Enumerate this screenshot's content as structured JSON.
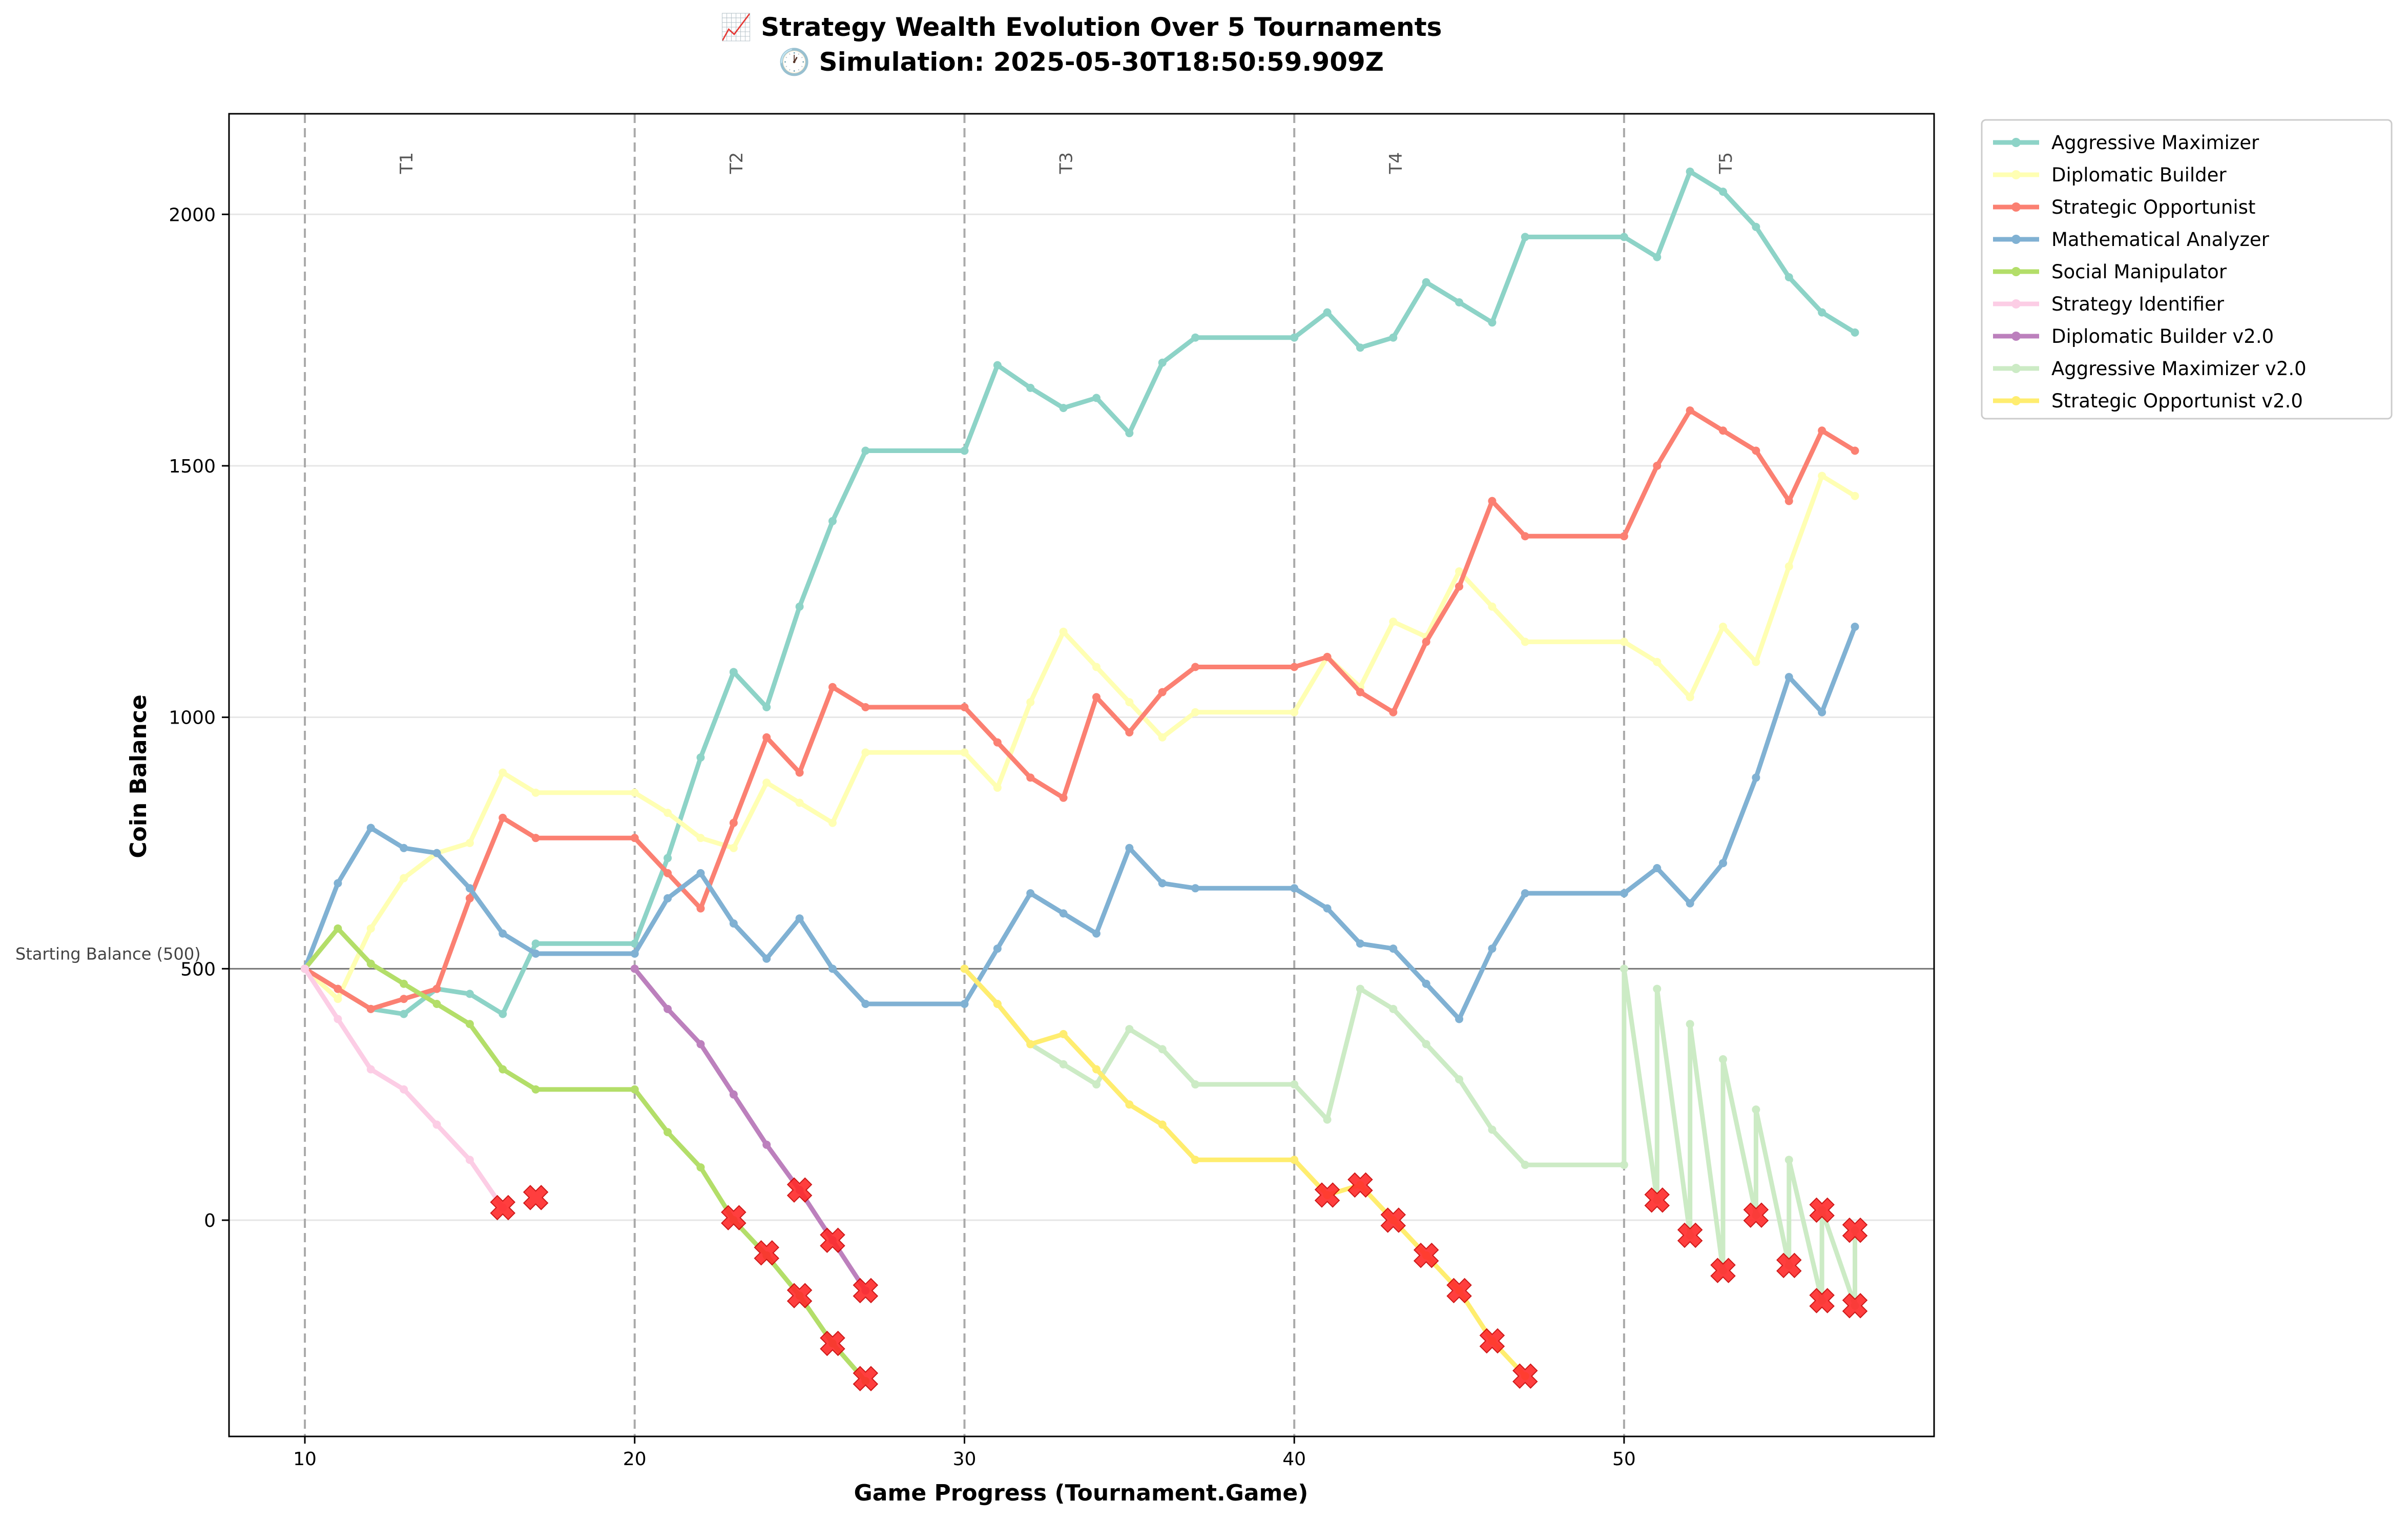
{
  "chart_data": {
    "type": "line",
    "title_line1": "📈 Strategy Wealth Evolution Over 5 Tournaments",
    "title_line2": "🕐 Simulation: 2025-05-30T18:50:59.909Z",
    "xlabel": "Game Progress (Tournament.Game)",
    "ylabel": "Coin Balance",
    "xlim": [
      7.7,
      59.4
    ],
    "ylim": [
      -430,
      2200
    ],
    "xticks": [
      10,
      20,
      30,
      40,
      50
    ],
    "yticks": [
      0,
      500,
      1000,
      1500,
      2000
    ],
    "grid": "horizontal",
    "legend_position": "outside-right",
    "reference_line": {
      "y": 500,
      "label": "Starting Balance (500)"
    },
    "tournament_markers": [
      {
        "x": 10,
        "label": "T1"
      },
      {
        "x": 20,
        "label": "T2"
      },
      {
        "x": 30,
        "label": "T3"
      },
      {
        "x": 40,
        "label": "T4"
      },
      {
        "x": 50,
        "label": "T5"
      }
    ],
    "series": [
      {
        "name": "Aggressive Maximizer",
        "color": "#8dd3c7",
        "points": [
          [
            10,
            500
          ],
          [
            11,
            460
          ],
          [
            12,
            420
          ],
          [
            13,
            410
          ],
          [
            14,
            460
          ],
          [
            15,
            450
          ],
          [
            16,
            410
          ],
          [
            17,
            550
          ],
          [
            20,
            550
          ],
          [
            21,
            720
          ],
          [
            22,
            920
          ],
          [
            23,
            1090
          ],
          [
            24,
            1020
          ],
          [
            25,
            1220
          ],
          [
            26,
            1390
          ],
          [
            27,
            1530
          ],
          [
            30,
            1530
          ],
          [
            31,
            1700
          ],
          [
            32,
            1655
          ],
          [
            33,
            1615
          ],
          [
            34,
            1635
          ],
          [
            35,
            1565
          ],
          [
            36,
            1705
          ],
          [
            37,
            1755
          ],
          [
            40,
            1755
          ],
          [
            41,
            1805
          ],
          [
            42,
            1735
          ],
          [
            43,
            1755
          ],
          [
            44,
            1865
          ],
          [
            45,
            1825
          ],
          [
            46,
            1785
          ],
          [
            47,
            1955
          ],
          [
            50,
            1955
          ],
          [
            51,
            1915
          ],
          [
            52,
            2085
          ],
          [
            53,
            2045
          ],
          [
            54,
            1975
          ],
          [
            55,
            1875
          ],
          [
            56,
            1805
          ],
          [
            57,
            1765
          ]
        ]
      },
      {
        "name": "Diplomatic Builder",
        "color": "#ffffb3",
        "points": [
          [
            10,
            500
          ],
          [
            11,
            440
          ],
          [
            12,
            580
          ],
          [
            13,
            680
          ],
          [
            14,
            730
          ],
          [
            15,
            750
          ],
          [
            16,
            890
          ],
          [
            17,
            850
          ],
          [
            20,
            850
          ],
          [
            21,
            810
          ],
          [
            22,
            760
          ],
          [
            23,
            740
          ],
          [
            24,
            870
          ],
          [
            25,
            830
          ],
          [
            26,
            790
          ],
          [
            27,
            930
          ],
          [
            30,
            930
          ],
          [
            31,
            860
          ],
          [
            32,
            1030
          ],
          [
            33,
            1170
          ],
          [
            34,
            1100
          ],
          [
            35,
            1030
          ],
          [
            36,
            960
          ],
          [
            37,
            1010
          ],
          [
            40,
            1010
          ],
          [
            41,
            1120
          ],
          [
            42,
            1060
          ],
          [
            43,
            1190
          ],
          [
            44,
            1160
          ],
          [
            45,
            1290
          ],
          [
            46,
            1220
          ],
          [
            47,
            1150
          ],
          [
            50,
            1150
          ],
          [
            51,
            1110
          ],
          [
            52,
            1040
          ],
          [
            53,
            1180
          ],
          [
            54,
            1110
          ],
          [
            55,
            1300
          ],
          [
            56,
            1480
          ],
          [
            57,
            1440
          ]
        ]
      },
      {
        "name": "Strategic Opportunist",
        "color": "#fb8072",
        "points": [
          [
            10,
            500
          ],
          [
            11,
            460
          ],
          [
            12,
            420
          ],
          [
            13,
            440
          ],
          [
            14,
            460
          ],
          [
            15,
            640
          ],
          [
            16,
            800
          ],
          [
            17,
            760
          ],
          [
            20,
            760
          ],
          [
            21,
            690
          ],
          [
            22,
            620
          ],
          [
            23,
            790
          ],
          [
            24,
            960
          ],
          [
            25,
            890
          ],
          [
            26,
            1060
          ],
          [
            27,
            1020
          ],
          [
            30,
            1020
          ],
          [
            31,
            950
          ],
          [
            32,
            880
          ],
          [
            33,
            840
          ],
          [
            34,
            1040
          ],
          [
            35,
            970
          ],
          [
            36,
            1050
          ],
          [
            37,
            1100
          ],
          [
            40,
            1100
          ],
          [
            41,
            1120
          ],
          [
            42,
            1050
          ],
          [
            43,
            1010
          ],
          [
            44,
            1150
          ],
          [
            45,
            1260
          ],
          [
            46,
            1430
          ],
          [
            47,
            1360
          ],
          [
            50,
            1360
          ],
          [
            51,
            1500
          ],
          [
            52,
            1610
          ],
          [
            53,
            1570
          ],
          [
            54,
            1530
          ],
          [
            55,
            1430
          ],
          [
            56,
            1570
          ],
          [
            57,
            1530
          ]
        ]
      },
      {
        "name": "Mathematical Analyzer",
        "color": "#80b1d3",
        "points": [
          [
            10,
            500
          ],
          [
            11,
            670
          ],
          [
            12,
            780
          ],
          [
            13,
            740
          ],
          [
            14,
            730
          ],
          [
            15,
            660
          ],
          [
            16,
            570
          ],
          [
            17,
            530
          ],
          [
            20,
            530
          ],
          [
            21,
            640
          ],
          [
            22,
            690
          ],
          [
            23,
            590
          ],
          [
            24,
            520
          ],
          [
            25,
            600
          ],
          [
            26,
            500
          ],
          [
            27,
            430
          ],
          [
            30,
            430
          ],
          [
            31,
            540
          ],
          [
            32,
            650
          ],
          [
            33,
            610
          ],
          [
            34,
            570
          ],
          [
            35,
            740
          ],
          [
            36,
            670
          ],
          [
            37,
            660
          ],
          [
            40,
            660
          ],
          [
            41,
            620
          ],
          [
            42,
            550
          ],
          [
            43,
            540
          ],
          [
            44,
            470
          ],
          [
            45,
            400
          ],
          [
            46,
            540
          ],
          [
            47,
            650
          ],
          [
            50,
            650
          ],
          [
            51,
            700
          ],
          [
            52,
            630
          ],
          [
            53,
            710
          ],
          [
            54,
            880
          ],
          [
            55,
            1080
          ],
          [
            56,
            1010
          ],
          [
            57,
            1180
          ]
        ]
      },
      {
        "name": "Social Manipulator",
        "color": "#b3de69",
        "points": [
          [
            10,
            500
          ],
          [
            11,
            580
          ],
          [
            12,
            510
          ],
          [
            13,
            470
          ],
          [
            14,
            430
          ],
          [
            15,
            390
          ],
          [
            16,
            300
          ],
          [
            17,
            260
          ],
          [
            20,
            260
          ],
          [
            21,
            175
          ],
          [
            22,
            105
          ],
          [
            23,
            0
          ],
          [
            24,
            -70
          ],
          [
            25,
            -150
          ],
          [
            26,
            -245
          ],
          [
            27,
            -320
          ]
        ]
      },
      {
        "name": "Strategy Identifier",
        "color": "#fccde5",
        "points": [
          [
            10,
            500
          ],
          [
            11,
            400
          ],
          [
            12,
            300
          ],
          [
            13,
            260
          ],
          [
            14,
            190
          ],
          [
            15,
            120
          ],
          [
            16,
            25
          ]
        ]
      },
      {
        "name": "Diplomatic Builder v2.0",
        "color": "#bc80bd",
        "points": [
          [
            20,
            500
          ],
          [
            21,
            420
          ],
          [
            22,
            350
          ],
          [
            23,
            250
          ],
          [
            24,
            150
          ],
          [
            25,
            60
          ],
          [
            26,
            -40
          ],
          [
            27,
            -140
          ]
        ]
      },
      {
        "name": "Aggressive Maximizer v2.0",
        "color": "#ccebc5",
        "points": [
          [
            30,
            500
          ],
          [
            31,
            430
          ],
          [
            32,
            350
          ],
          [
            33,
            310
          ],
          [
            34,
            270
          ],
          [
            35,
            380
          ],
          [
            36,
            340
          ],
          [
            37,
            270
          ],
          [
            40,
            270
          ],
          [
            41,
            200
          ],
          [
            42,
            460
          ],
          [
            43,
            420
          ],
          [
            44,
            350
          ],
          [
            45,
            280
          ],
          [
            46,
            180
          ],
          [
            47,
            110
          ],
          [
            50,
            110
          ],
          [
            50,
            500
          ],
          [
            51,
            40
          ],
          [
            51,
            460
          ],
          [
            52,
            -30
          ],
          [
            52,
            390
          ],
          [
            53,
            -100
          ],
          [
            53,
            320
          ],
          [
            54,
            10
          ],
          [
            54,
            220
          ],
          [
            55,
            -90
          ],
          [
            55,
            120
          ],
          [
            56,
            -160
          ],
          [
            56,
            20
          ],
          [
            57,
            -170
          ],
          [
            57,
            -20
          ]
        ]
      },
      {
        "name": "Strategic Opportunist v2.0",
        "color": "#ffed6f",
        "points": [
          [
            30,
            500
          ],
          [
            31,
            430
          ],
          [
            32,
            350
          ],
          [
            33,
            370
          ],
          [
            34,
            300
          ],
          [
            35,
            230
          ],
          [
            36,
            190
          ],
          [
            37,
            120
          ],
          [
            40,
            120
          ],
          [
            41,
            50
          ],
          [
            42,
            70
          ],
          [
            43,
            0
          ],
          [
            44,
            -70
          ],
          [
            45,
            -140
          ],
          [
            46,
            -240
          ],
          [
            47,
            -310
          ]
        ]
      }
    ],
    "eliminations": [
      [
        16,
        25
      ],
      [
        17,
        45
      ],
      [
        23,
        5
      ],
      [
        24,
        -65
      ],
      [
        25,
        -150
      ],
      [
        26,
        -245
      ],
      [
        27,
        -315
      ],
      [
        25,
        60
      ],
      [
        26,
        -40
      ],
      [
        27,
        -140
      ],
      [
        41,
        50
      ],
      [
        42,
        70
      ],
      [
        43,
        0
      ],
      [
        44,
        -70
      ],
      [
        45,
        -140
      ],
      [
        46,
        -240
      ],
      [
        47,
        -310
      ],
      [
        51,
        40
      ],
      [
        52,
        -30
      ],
      [
        53,
        -100
      ],
      [
        54,
        10
      ],
      [
        55,
        -90
      ],
      [
        56,
        20
      ],
      [
        56,
        -160
      ],
      [
        57,
        -20
      ],
      [
        57,
        -170
      ]
    ]
  }
}
